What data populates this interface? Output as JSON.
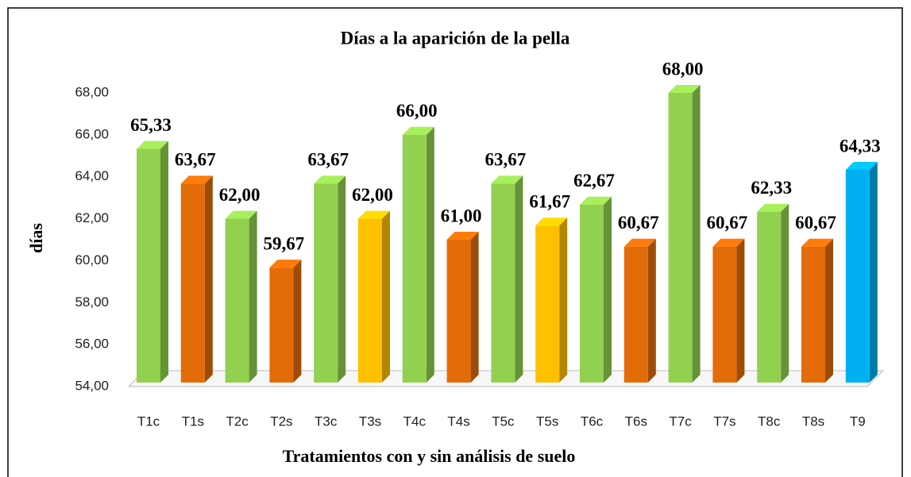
{
  "chart_data": {
    "type": "bar3d",
    "title": "Días a la aparición de la pella",
    "ylabel": "días",
    "xlabel": "Tratamientos con y sin análisis de suelo",
    "categories": [
      "T1c",
      "T1s",
      "T2c",
      "T2s",
      "T3c",
      "T3s",
      "T4c",
      "T4s",
      "T5c",
      "T5s",
      "T6c",
      "T6s",
      "T7c",
      "T7s",
      "T8c",
      "T8s",
      "T9"
    ],
    "values": [
      65.33,
      63.67,
      62.0,
      59.67,
      63.67,
      62.0,
      66.0,
      61.0,
      63.67,
      61.67,
      62.67,
      60.67,
      68.0,
      60.67,
      62.33,
      60.67,
      64.33
    ],
    "value_labels": [
      "65,33",
      "63,67",
      "62,00",
      "59,67",
      "63,67",
      "62,00",
      "66,00",
      "61,00",
      "63,67",
      "61,67",
      "62,67",
      "60,67",
      "68,00",
      "60,67",
      "62,33",
      "60,67",
      "64,33"
    ],
    "colors": [
      "#92d050",
      "#e36c09",
      "#92d050",
      "#e36c09",
      "#92d050",
      "#ffc000",
      "#92d050",
      "#e36c09",
      "#92d050",
      "#ffc000",
      "#92d050",
      "#e36c09",
      "#92d050",
      "#e36c09",
      "#92d050",
      "#e36c09",
      "#00b0f0"
    ],
    "ylim": [
      54,
      68
    ],
    "yticks": [
      {
        "value": 54,
        "label": "54,00"
      },
      {
        "value": 56,
        "label": "56,00"
      },
      {
        "value": 58,
        "label": "58,00"
      },
      {
        "value": 60,
        "label": "60,00"
      },
      {
        "value": 62,
        "label": "62,00"
      },
      {
        "value": 64,
        "label": "64,00"
      },
      {
        "value": 66,
        "label": "66,00"
      },
      {
        "value": 68,
        "label": "68,00"
      }
    ]
  }
}
